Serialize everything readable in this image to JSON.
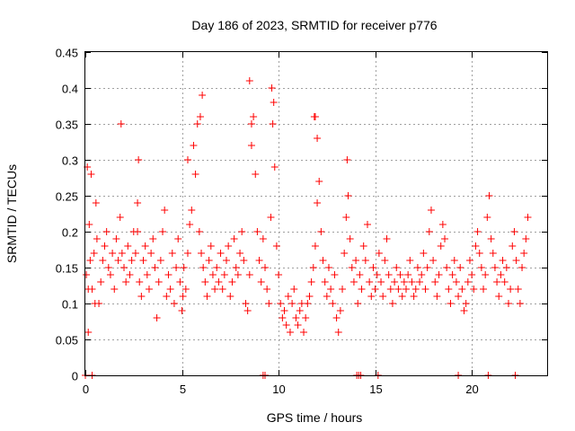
{
  "chart_data": {
    "type": "scatter",
    "title": "Day 186 of 2023, SRMTID for receiver p776",
    "xlabel": "GPS time / hours",
    "ylabel": "SRMTID / TECUs",
    "xlim": [
      0,
      23.9
    ],
    "ylim": [
      0,
      0.45
    ],
    "xticks": [
      0,
      5,
      10,
      15,
      20
    ],
    "xtick_labels": [
      "0",
      "5",
      "10",
      "15",
      "20"
    ],
    "yticks": [
      0,
      0.05,
      0.1,
      0.15,
      0.2,
      0.25,
      0.3,
      0.35,
      0.4,
      0.45
    ],
    "ytick_labels": [
      "0",
      "0.05",
      "0.1",
      "0.15",
      "0.2",
      "0.25",
      "0.3",
      "0.35",
      "0.4",
      "0.45"
    ],
    "grid": true,
    "marker": "+",
    "color": "#ff0000",
    "series": [
      {
        "name": "SRMTID",
        "x": [
          0.05,
          0.1,
          0.15,
          0.2,
          0.25,
          0.3,
          0.35,
          0.45,
          0.55,
          0.6,
          0.7,
          0.8,
          0.9,
          1.0,
          1.1,
          1.2,
          1.3,
          1.4,
          1.5,
          1.6,
          1.7,
          1.8,
          1.9,
          2.0,
          2.1,
          2.2,
          2.3,
          2.4,
          2.5,
          2.6,
          2.7,
          2.75,
          2.8,
          2.9,
          3.0,
          3.1,
          3.2,
          3.3,
          3.4,
          3.5,
          3.6,
          3.7,
          3.8,
          3.9,
          4.0,
          4.1,
          4.2,
          4.3,
          4.4,
          4.5,
          4.6,
          4.7,
          4.8,
          4.9,
          5.0,
          5.05,
          5.1,
          5.2,
          5.3,
          5.4,
          5.5,
          5.6,
          5.7,
          5.8,
          5.9,
          6.0,
          6.1,
          6.2,
          6.3,
          6.4,
          6.5,
          6.6,
          6.7,
          6.8,
          6.9,
          7.0,
          7.1,
          7.2,
          7.3,
          7.4,
          7.5,
          7.6,
          7.7,
          7.8,
          7.9,
          8.0,
          8.1,
          8.2,
          8.3,
          8.4,
          8.5,
          8.6,
          8.7,
          8.8,
          8.9,
          9.0,
          9.1,
          9.2,
          9.3,
          9.4,
          9.5,
          9.6,
          9.7,
          9.8,
          9.9,
          10.0,
          10.1,
          10.2,
          10.3,
          10.4,
          10.5,
          10.6,
          10.7,
          10.8,
          10.9,
          11.0,
          11.1,
          11.2,
          11.3,
          11.4,
          11.5,
          11.6,
          11.7,
          11.8,
          11.9,
          12.0,
          12.1,
          12.2,
          12.3,
          12.4,
          12.5,
          12.6,
          12.7,
          12.8,
          12.9,
          13.0,
          13.1,
          13.2,
          13.3,
          13.4,
          13.5,
          13.6,
          13.7,
          13.8,
          13.9,
          14.0,
          14.1,
          14.2,
          14.3,
          14.4,
          14.5,
          14.6,
          14.7,
          14.8,
          14.9,
          15.0,
          15.1,
          15.2,
          15.3,
          15.4,
          15.5,
          15.6,
          15.7,
          15.8,
          15.9,
          16.0,
          16.1,
          16.2,
          16.3,
          16.4,
          16.5,
          16.6,
          16.7,
          16.8,
          16.9,
          17.0,
          17.1,
          17.2,
          17.3,
          17.4,
          17.5,
          17.6,
          17.7,
          17.8,
          17.9,
          18.0,
          18.1,
          18.2,
          18.3,
          18.4,
          18.5,
          18.6,
          18.7,
          18.8,
          18.9,
          19.0,
          19.1,
          19.2,
          19.3,
          19.4,
          19.5,
          19.6,
          19.7,
          19.8,
          19.9,
          20.0,
          20.1,
          20.2,
          20.3,
          20.4,
          20.5,
          20.6,
          20.7,
          20.8,
          20.9,
          21.0,
          21.1,
          21.2,
          21.3,
          21.4,
          21.5,
          21.6,
          21.7,
          21.8,
          21.9,
          22.0,
          22.1,
          22.2,
          22.3,
          22.4,
          22.5,
          22.6,
          22.7,
          22.8,
          22.9,
          0.15,
          0.5,
          1.85,
          2.7,
          5.3,
          5.95,
          6.05,
          8.5,
          8.6,
          9.65,
          9.75,
          11.85,
          11.9,
          12.0,
          13.55,
          0.0,
          0.35,
          9.2,
          9.3,
          14.05,
          14.15,
          14.25,
          15.15,
          19.3,
          20.85,
          22.25
        ],
        "y": [
          0.14,
          0.29,
          0.06,
          0.21,
          0.16,
          0.28,
          0.12,
          0.17,
          0.24,
          0.19,
          0.1,
          0.13,
          0.16,
          0.18,
          0.2,
          0.15,
          0.14,
          0.17,
          0.12,
          0.19,
          0.16,
          0.22,
          0.17,
          0.15,
          0.13,
          0.18,
          0.14,
          0.16,
          0.2,
          0.17,
          0.24,
          0.3,
          0.13,
          0.11,
          0.16,
          0.18,
          0.14,
          0.12,
          0.17,
          0.19,
          0.15,
          0.08,
          0.13,
          0.16,
          0.2,
          0.23,
          0.11,
          0.14,
          0.12,
          0.17,
          0.1,
          0.15,
          0.19,
          0.13,
          0.09,
          0.11,
          0.15,
          0.12,
          0.17,
          0.21,
          0.23,
          0.32,
          0.28,
          0.35,
          0.2,
          0.17,
          0.15,
          0.13,
          0.11,
          0.16,
          0.18,
          0.14,
          0.12,
          0.15,
          0.13,
          0.17,
          0.12,
          0.14,
          0.16,
          0.18,
          0.11,
          0.13,
          0.19,
          0.15,
          0.14,
          0.17,
          0.2,
          0.16,
          0.1,
          0.09,
          0.14,
          0.32,
          0.36,
          0.28,
          0.2,
          0.16,
          0.13,
          0.19,
          0.15,
          0.12,
          0.1,
          0.22,
          0.35,
          0.29,
          0.18,
          0.14,
          0.1,
          0.08,
          0.09,
          0.07,
          0.11,
          0.06,
          0.1,
          0.12,
          0.08,
          0.07,
          0.09,
          0.1,
          0.06,
          0.08,
          0.1,
          0.11,
          0.13,
          0.15,
          0.18,
          0.24,
          0.27,
          0.2,
          0.16,
          0.13,
          0.11,
          0.15,
          0.12,
          0.1,
          0.14,
          0.08,
          0.06,
          0.09,
          0.12,
          0.17,
          0.22,
          0.25,
          0.19,
          0.15,
          0.13,
          0.16,
          0.1,
          0.14,
          0.12,
          0.18,
          0.16,
          0.21,
          0.13,
          0.11,
          0.15,
          0.12,
          0.14,
          0.17,
          0.13,
          0.11,
          0.16,
          0.19,
          0.14,
          0.12,
          0.1,
          0.13,
          0.15,
          0.12,
          0.14,
          0.11,
          0.13,
          0.12,
          0.14,
          0.16,
          0.13,
          0.11,
          0.12,
          0.15,
          0.13,
          0.14,
          0.17,
          0.12,
          0.15,
          0.2,
          0.23,
          0.16,
          0.13,
          0.11,
          0.14,
          0.18,
          0.21,
          0.19,
          0.15,
          0.12,
          0.1,
          0.14,
          0.16,
          0.13,
          0.11,
          0.15,
          0.12,
          0.09,
          0.1,
          0.13,
          0.16,
          0.14,
          0.12,
          0.18,
          0.2,
          0.17,
          0.15,
          0.12,
          0.14,
          0.22,
          0.25,
          0.19,
          0.17,
          0.15,
          0.13,
          0.11,
          0.14,
          0.16,
          0.13,
          0.15,
          0.1,
          0.12,
          0.18,
          0.2,
          0.16,
          0.12,
          0.1,
          0.15,
          0.17,
          0.19,
          0.22,
          0.12,
          0.1,
          0.35,
          0.2,
          0.3,
          0.36,
          0.39,
          0.41,
          0.35,
          0.4,
          0.38,
          0.36,
          0.36,
          0.33,
          0.3,
          0.0,
          0.0,
          0.0,
          0.0,
          0.0,
          0.0,
          0.0,
          0.0,
          0.0,
          0.0,
          0.0
        ]
      }
    ]
  }
}
